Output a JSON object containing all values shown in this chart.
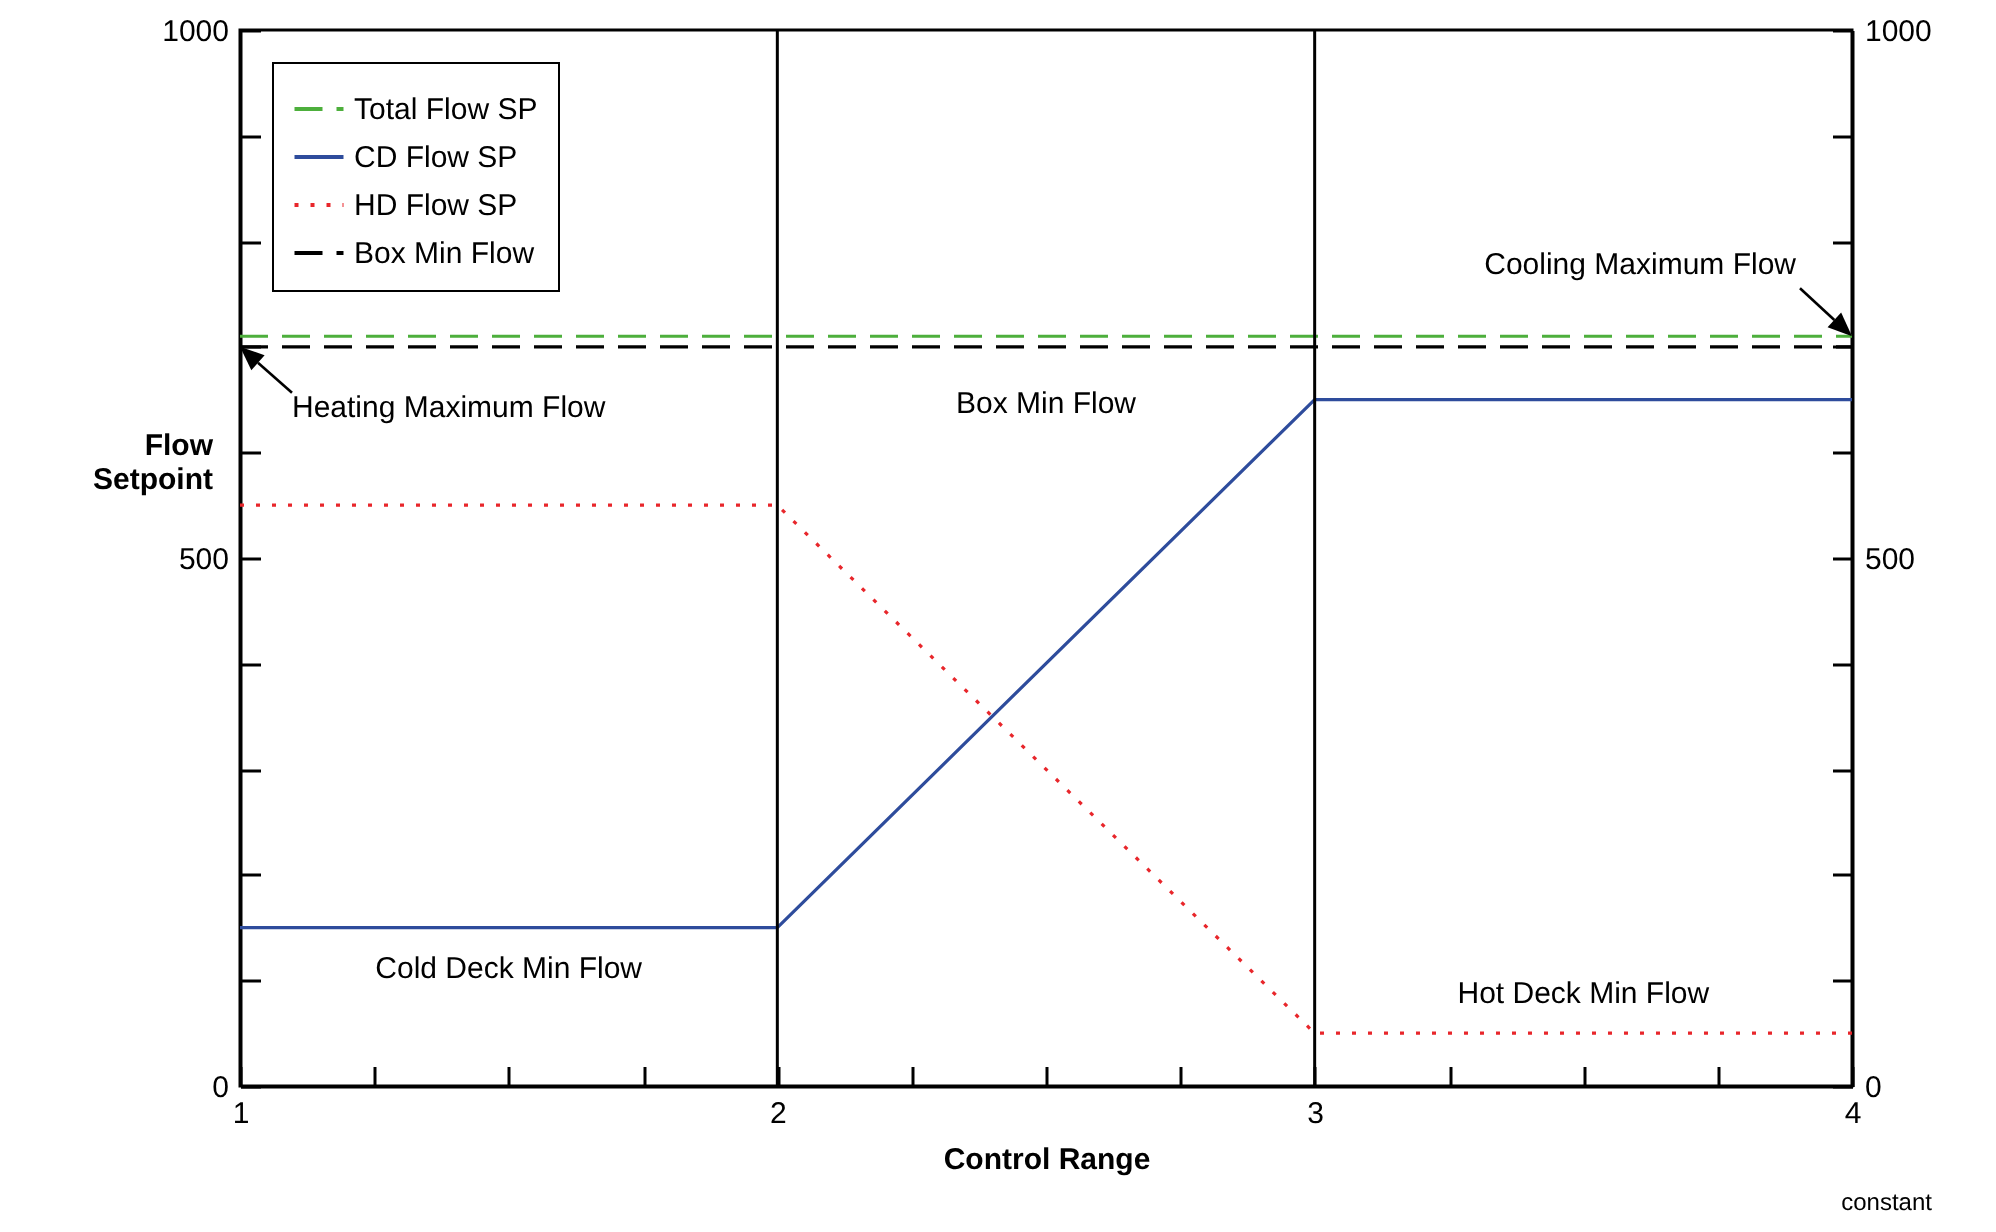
{
  "chart_data": {
    "type": "line",
    "xlabel": "Control Range",
    "ylabel": "Flow Setpoint",
    "x": [
      1,
      2,
      3,
      4
    ],
    "series": [
      {
        "name": "Total Flow SP",
        "color": "#4daf3c",
        "line_style": "dashed",
        "values": [
          710,
          710,
          710,
          710
        ]
      },
      {
        "name": "CD Flow SP",
        "color": "#2e4c9c",
        "line_style": "solid",
        "values": [
          150,
          150,
          650,
          650
        ]
      },
      {
        "name": "HD Flow SP",
        "color": "#e8262b",
        "line_style": "dotted",
        "values": [
          550,
          550,
          50,
          50
        ]
      },
      {
        "name": "Box Min Flow",
        "color": "#000000",
        "line_style": "dashed",
        "values": [
          700,
          700,
          700,
          700
        ]
      }
    ],
    "xlim": [
      1,
      4
    ],
    "xticks": [
      1,
      {
        "value": 1.25,
        "label": null
      },
      {
        "value": 1.5,
        "label": null
      },
      {
        "value": 1.75,
        "label": null
      },
      2,
      {
        "value": 2.25,
        "label": null
      },
      {
        "value": 2.5,
        "label": null
      },
      {
        "value": 2.75,
        "label": null
      },
      3,
      {
        "value": 3.25,
        "label": null
      },
      {
        "value": 3.5,
        "label": null
      },
      {
        "value": 3.75,
        "label": null
      },
      4
    ],
    "ylim": [
      0,
      1000
    ],
    "yticks": [
      0,
      {
        "value": 100,
        "label": null
      },
      {
        "value": 200,
        "label": null
      },
      {
        "value": 300,
        "label": null
      },
      {
        "value": 400,
        "label": null
      },
      500,
      {
        "value": 600,
        "label": null
      },
      {
        "value": 700,
        "label": null
      },
      {
        "value": 800,
        "label": null
      },
      {
        "value": 900,
        "label": null
      },
      1000
    ],
    "y2lim": [
      0,
      1000
    ],
    "y2ticks": [
      0,
      {
        "value": 100,
        "label": null
      },
      {
        "value": 200,
        "label": null
      },
      {
        "value": 300,
        "label": null
      },
      {
        "value": 400,
        "label": null
      },
      500,
      {
        "value": 600,
        "label": null
      },
      {
        "value": 700,
        "label": null
      },
      {
        "value": 800,
        "label": null
      },
      {
        "value": 900,
        "label": null
      },
      1000
    ],
    "ref_lines": [
      {
        "axis": "x",
        "value": 2,
        "color": "#000000"
      },
      {
        "axis": "x",
        "value": 3,
        "color": "#000000"
      }
    ],
    "annotations": [
      {
        "text": "Heating Maximum Flow",
        "x": 1,
        "y": 700
      },
      {
        "text": "Cooling Maximum Flow",
        "x": 4,
        "y": 710
      },
      {
        "text": "Box Min Flow",
        "x": 2.5,
        "y": 700
      },
      {
        "text": "Cold Deck Min Flow",
        "x": 1.5,
        "y": 150
      },
      {
        "text": "Hot Deck Min Flow",
        "x": 3.5,
        "y": 50
      },
      "constant"
    ],
    "legend": "top left",
    "grid": false
  }
}
